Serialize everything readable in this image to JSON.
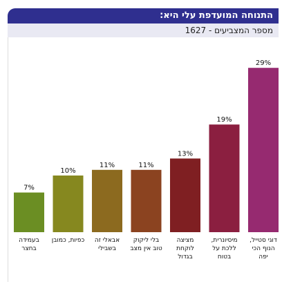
{
  "header": {
    "title": "התנוחה המועדפת עלי היא:",
    "subtitle": "מספר המצביעים - 1627"
  },
  "chart_data": {
    "type": "bar",
    "categories": [
      "בעמידה\nבחצר",
      "כפיות, כמובן",
      "אבאלי זה\nבשבילי",
      "בלי ליקוק\nטוב אין מצב",
      "מציצה\nלוקחת\nבגדול",
      "מיסיונרית,\nללכת על\nבטוח",
      "דוגי סטייל,\nהנוף הכי\nיפה"
    ],
    "values": [
      7,
      10,
      11,
      11,
      13,
      19,
      29
    ],
    "value_labels": [
      "7%",
      "10%",
      "11%",
      "11%",
      "13%",
      "19%",
      "29%"
    ],
    "colors": [
      "#6b8e23",
      "#86881f",
      "#8c6a1f",
      "#8b4320",
      "#7f1f22",
      "#8b1f40",
      "#962a70"
    ],
    "ylim": [
      0,
      30
    ],
    "title": "התנוחה המועדפת עלי היא:",
    "xlabel": "",
    "ylabel": ""
  }
}
